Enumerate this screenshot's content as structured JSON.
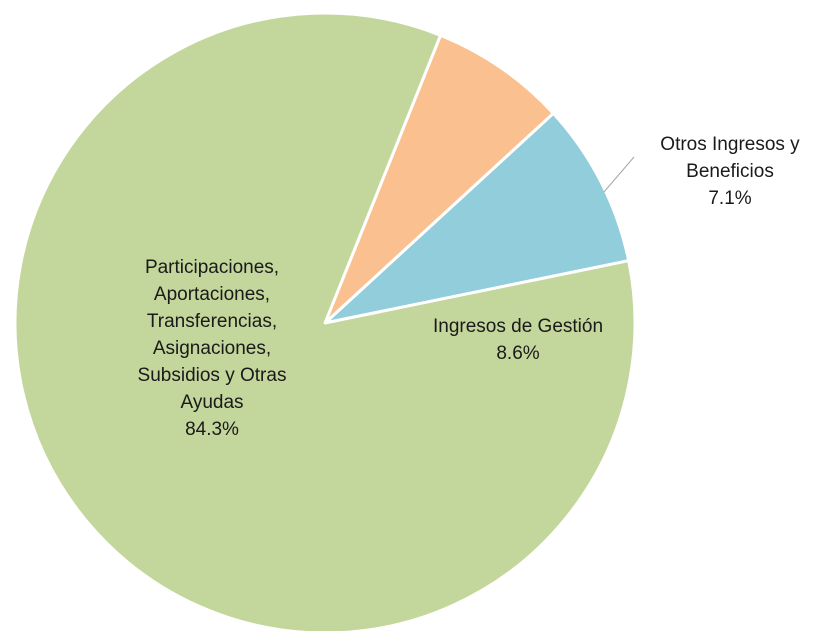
{
  "chart_data": {
    "type": "pie",
    "title": "",
    "slices": [
      {
        "label_lines": [
          "Ingresos de Gestión"
        ],
        "value": 8.6,
        "value_label": "8.6%",
        "color": "#92cddc"
      },
      {
        "label_lines": [
          "Otros Ingresos y",
          "Beneficios"
        ],
        "value": 7.1,
        "value_label": "7.1%",
        "color": "#fac090"
      },
      {
        "label_lines": [
          "Participaciones,",
          "Aportaciones,",
          "Transferencias,",
          "Asignaciones,",
          "Subsidios y Otras",
          "Ayudas"
        ],
        "value": 84.3,
        "value_label": "84.3%",
        "color": "#c3d69b"
      }
    ],
    "start_angle_deg": 11.6,
    "direction": "counterclockwise",
    "slice_border_color": "#ffffff",
    "leader_line_color": "#a6a6a6",
    "label_color": "#1a1a1a"
  }
}
